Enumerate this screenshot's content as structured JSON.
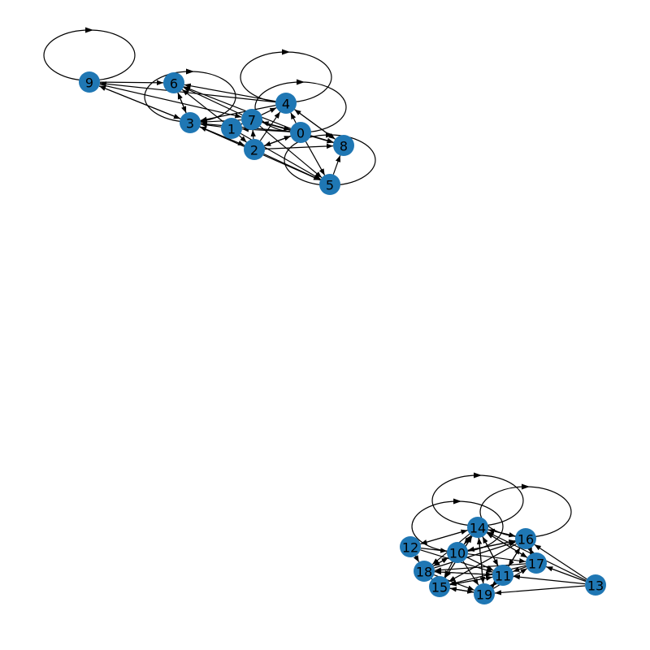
{
  "graph": {
    "directed": true,
    "colors": {
      "node": "#1f77b4",
      "edge": "#000000",
      "label": "#000000",
      "background": "#ffffff"
    },
    "nodes": [
      {
        "id": "0"
      },
      {
        "id": "1"
      },
      {
        "id": "2"
      },
      {
        "id": "3"
      },
      {
        "id": "4"
      },
      {
        "id": "5"
      },
      {
        "id": "6"
      },
      {
        "id": "7"
      },
      {
        "id": "8"
      },
      {
        "id": "9"
      },
      {
        "id": "10"
      },
      {
        "id": "11"
      },
      {
        "id": "12"
      },
      {
        "id": "13"
      },
      {
        "id": "14"
      },
      {
        "id": "15"
      },
      {
        "id": "16"
      },
      {
        "id": "17"
      },
      {
        "id": "18"
      },
      {
        "id": "19"
      }
    ],
    "self_loops": [
      "9",
      "4",
      "0",
      "3",
      "8",
      "14",
      "10",
      "16"
    ],
    "edges": [
      [
        "9",
        "6"
      ],
      [
        "9",
        "3"
      ],
      [
        "9",
        "7"
      ],
      [
        "3",
        "9"
      ],
      [
        "4",
        "9"
      ],
      [
        "3",
        "6"
      ],
      [
        "6",
        "3"
      ],
      [
        "1",
        "6"
      ],
      [
        "7",
        "6"
      ],
      [
        "4",
        "6"
      ],
      [
        "0",
        "6"
      ],
      [
        "7",
        "3"
      ],
      [
        "1",
        "3"
      ],
      [
        "0",
        "3"
      ],
      [
        "2",
        "3"
      ],
      [
        "4",
        "3"
      ],
      [
        "7",
        "4"
      ],
      [
        "0",
        "4"
      ],
      [
        "2",
        "4"
      ],
      [
        "8",
        "4"
      ],
      [
        "4",
        "8"
      ],
      [
        "0",
        "1"
      ],
      [
        "1",
        "7"
      ],
      [
        "7",
        "0"
      ],
      [
        "0",
        "7"
      ],
      [
        "2",
        "7"
      ],
      [
        "0",
        "2"
      ],
      [
        "2",
        "0"
      ],
      [
        "1",
        "2"
      ],
      [
        "3",
        "2"
      ],
      [
        "0",
        "8"
      ],
      [
        "2",
        "8"
      ],
      [
        "7",
        "8"
      ],
      [
        "5",
        "8"
      ],
      [
        "0",
        "5"
      ],
      [
        "2",
        "5"
      ],
      [
        "1",
        "5"
      ],
      [
        "3",
        "5"
      ],
      [
        "7",
        "5"
      ],
      [
        "13",
        "17"
      ],
      [
        "13",
        "16"
      ],
      [
        "13",
        "19"
      ],
      [
        "13",
        "11"
      ],
      [
        "13",
        "14"
      ],
      [
        "12",
        "14"
      ],
      [
        "14",
        "12"
      ],
      [
        "12",
        "10"
      ],
      [
        "12",
        "18"
      ],
      [
        "12",
        "11"
      ],
      [
        "10",
        "14"
      ],
      [
        "14",
        "10"
      ],
      [
        "10",
        "18"
      ],
      [
        "18",
        "10"
      ],
      [
        "10",
        "16"
      ],
      [
        "10",
        "17"
      ],
      [
        "10",
        "11"
      ],
      [
        "10",
        "15"
      ],
      [
        "10",
        "19"
      ],
      [
        "14",
        "16"
      ],
      [
        "16",
        "14"
      ],
      [
        "14",
        "17"
      ],
      [
        "14",
        "18"
      ],
      [
        "14",
        "15"
      ],
      [
        "14",
        "11"
      ],
      [
        "14",
        "19"
      ],
      [
        "16",
        "11"
      ],
      [
        "16",
        "17"
      ],
      [
        "16",
        "15"
      ],
      [
        "16",
        "10"
      ],
      [
        "17",
        "14"
      ],
      [
        "17",
        "15"
      ],
      [
        "17",
        "18"
      ],
      [
        "17",
        "11"
      ],
      [
        "17",
        "16"
      ],
      [
        "11",
        "14"
      ],
      [
        "11",
        "15"
      ],
      [
        "11",
        "18"
      ],
      [
        "11",
        "19"
      ],
      [
        "11",
        "16"
      ],
      [
        "18",
        "15"
      ],
      [
        "15",
        "18"
      ],
      [
        "18",
        "11"
      ],
      [
        "18",
        "19"
      ],
      [
        "18",
        "16"
      ],
      [
        "15",
        "19"
      ],
      [
        "19",
        "15"
      ],
      [
        "15",
        "11"
      ],
      [
        "15",
        "14"
      ],
      [
        "19",
        "14"
      ],
      [
        "19",
        "17"
      ],
      [
        "19",
        "11"
      ]
    ]
  }
}
